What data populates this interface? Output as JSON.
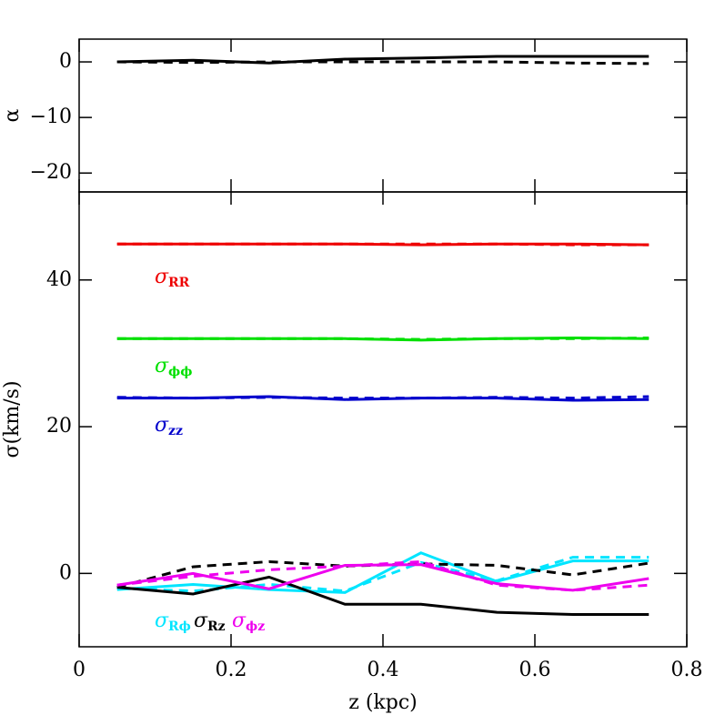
{
  "chart_data": [
    {
      "type": "line",
      "ylabel": "α",
      "x": [
        0.05,
        0.15,
        0.25,
        0.35,
        0.45,
        0.55,
        0.65,
        0.75
      ],
      "xlim": [
        0,
        0.8
      ],
      "xticks": [
        0,
        0.2,
        0.4,
        0.6,
        0.8
      ],
      "ylim": [
        -23.4,
        4.1
      ],
      "yticks": [
        {
          "value": 0,
          "label": "0"
        },
        {
          "value": -10,
          "label": "−10"
        },
        {
          "value": -20,
          "label": "−20"
        }
      ],
      "series": [
        {
          "color": "#000000",
          "dashed": false,
          "values": [
            0,
            0.3,
            -0.2,
            0.5,
            0.7,
            1.0,
            1.0,
            1.0
          ]
        },
        {
          "color": "#000000",
          "dashed": true,
          "values": [
            0,
            -0.1,
            0,
            0,
            0,
            0,
            -0.2,
            -0.3
          ]
        }
      ]
    },
    {
      "type": "line",
      "ylabel": "σ(km/s)",
      "xlabel": "z (kpc)",
      "x": [
        0.05,
        0.15,
        0.25,
        0.35,
        0.45,
        0.55,
        0.65,
        0.75
      ],
      "xlim": [
        0,
        0.8
      ],
      "xticks": [
        0,
        0.2,
        0.4,
        0.6,
        0.8
      ],
      "ylim": [
        -10,
        52
      ],
      "yticks": [
        0,
        20,
        40
      ],
      "series": [
        {
          "color": "#ee0000",
          "dashed": false,
          "values": [
            44.9,
            44.9,
            44.9,
            44.9,
            44.8,
            44.9,
            44.9,
            44.8
          ]
        },
        {
          "color": "#ee0000",
          "dashed": true,
          "values": [
            44.9,
            44.9,
            44.9,
            44.9,
            44.9,
            44.9,
            44.8,
            44.8
          ]
        },
        {
          "color": "#00e000",
          "dashed": false,
          "values": [
            32.0,
            32.0,
            32.0,
            32.0,
            31.8,
            32.0,
            32.1,
            32.0
          ]
        },
        {
          "color": "#00e000",
          "dashed": true,
          "values": [
            32.0,
            32.0,
            32.0,
            32.0,
            31.9,
            32.0,
            32.0,
            32.1
          ]
        },
        {
          "color": "#0000cc",
          "dashed": false,
          "values": [
            23.9,
            23.9,
            24.1,
            23.7,
            23.9,
            23.9,
            23.6,
            23.7
          ]
        },
        {
          "color": "#0000cc",
          "dashed": true,
          "values": [
            24.0,
            23.9,
            24.0,
            23.9,
            23.9,
            24.0,
            23.9,
            24.1
          ]
        },
        {
          "color": "#00e5ff",
          "dashed": false,
          "values": [
            -2.2,
            -1.5,
            -2.2,
            -2.6,
            2.8,
            -1.1,
            1.7,
            1.7
          ]
        },
        {
          "color": "#00e5ff",
          "dashed": true,
          "values": [
            -2.0,
            -2.4,
            -1.5,
            -2.4,
            1.5,
            -1.0,
            2.2,
            2.2
          ]
        },
        {
          "color": "#000000",
          "dashed": false,
          "values": [
            -1.9,
            -2.8,
            -0.5,
            -4.2,
            -4.2,
            -5.3,
            -5.6,
            -5.6
          ]
        },
        {
          "color": "#000000",
          "dashed": true,
          "values": [
            -1.9,
            0.9,
            1.6,
            1.0,
            1.3,
            1.1,
            -0.2,
            1.4
          ]
        },
        {
          "color": "#ee00ee",
          "dashed": false,
          "values": [
            -1.6,
            0.0,
            -2.1,
            1.1,
            1.2,
            -1.4,
            -2.3,
            -0.7
          ]
        },
        {
          "color": "#ee00ee",
          "dashed": true,
          "values": [
            -1.6,
            -0.4,
            0.5,
            1.0,
            1.6,
            -1.6,
            -2.3,
            -1.6
          ]
        }
      ],
      "annotations": [
        {
          "text": "σ",
          "sub": "RR",
          "color": "#ee0000"
        },
        {
          "text": "σ",
          "sub": "ϕϕ",
          "color": "#00e000"
        },
        {
          "text": "σ",
          "sub": "zz",
          "color": "#0000cc"
        },
        {
          "text": "σ",
          "sub": "Rϕ",
          "color": "#00e5ff"
        },
        {
          "text": "σ",
          "sub": "Rz",
          "color": "#000000"
        },
        {
          "text": "σ",
          "sub": "ϕz",
          "color": "#ee00ee"
        }
      ]
    }
  ]
}
